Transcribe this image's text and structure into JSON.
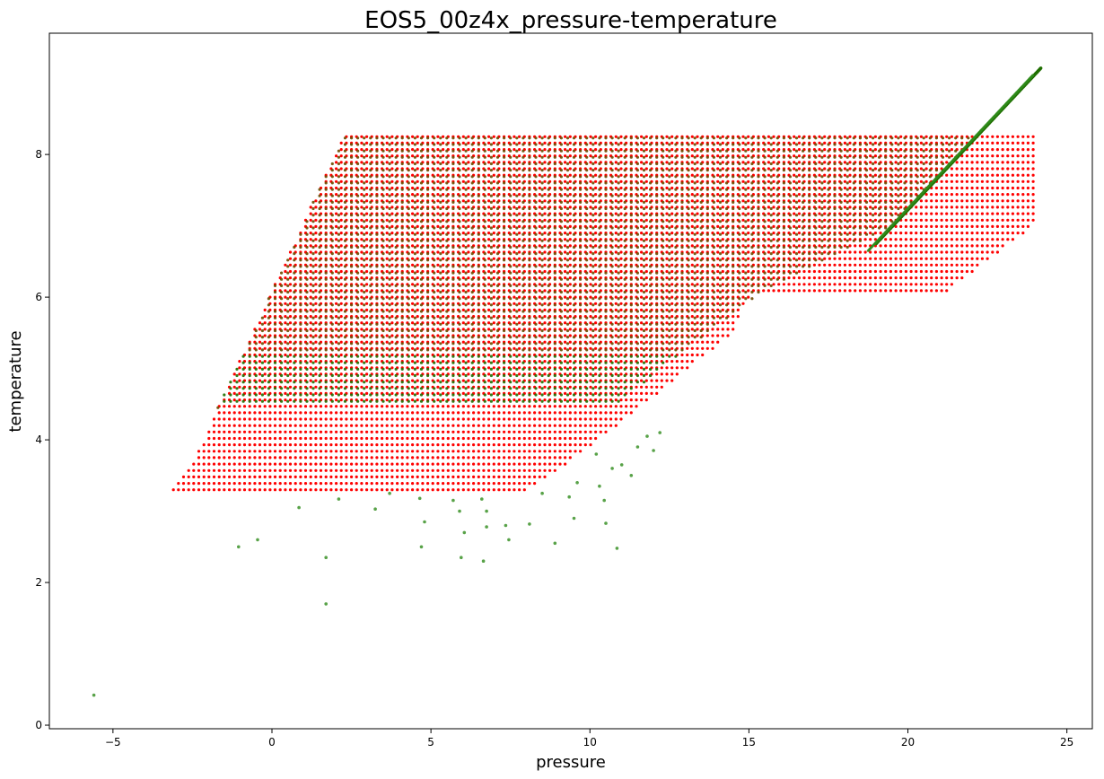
{
  "chart_data": {
    "type": "scatter",
    "title": "EOS5_00z4x_pressure-temperature",
    "xlabel": "pressure",
    "ylabel": "temperature",
    "xlim": [
      -7.0,
      25.8
    ],
    "ylim": [
      -0.05,
      9.7
    ],
    "xticks": [
      -5,
      0,
      5,
      10,
      15,
      20,
      25
    ],
    "yticks": [
      0,
      2,
      4,
      6,
      8
    ],
    "xtick_labels": [
      "−5",
      "0",
      "5",
      "10",
      "15",
      "20",
      "25"
    ],
    "ytick_labels": [
      "0",
      "2",
      "4",
      "6",
      "8"
    ],
    "grid": false,
    "colors": {
      "red_series": "#ff0000",
      "green_series": "#2e8b1a",
      "green_dense": "#1f6e00",
      "overlap": "#6b4a00"
    },
    "red_region": {
      "description_points": [
        [
          -3.1,
          3.3
        ],
        [
          8.1,
          3.3
        ],
        [
          10.0,
          3.9
        ],
        [
          14.5,
          5.5
        ],
        [
          15.0,
          6.0
        ],
        [
          21.0,
          6.0
        ],
        [
          24.1,
          7.05
        ],
        [
          24.1,
          8.3
        ],
        [
          2.3,
          8.3
        ],
        [
          -1.7,
          4.45
        ],
        [
          -2.5,
          3.65
        ]
      ]
    },
    "green_region": {
      "description_points": [
        [
          -1.7,
          4.45
        ],
        [
          10.8,
          4.5
        ],
        [
          14.0,
          5.6
        ],
        [
          15.5,
          6.1
        ],
        [
          19.5,
          7.0
        ],
        [
          24.2,
          9.2
        ],
        [
          22.0,
          8.3
        ],
        [
          2.3,
          8.3
        ]
      ]
    },
    "outlier_points": [
      [
        -5.6,
        0.42
      ],
      [
        1.7,
        1.7
      ],
      [
        -1.05,
        2.5
      ],
      [
        -0.45,
        2.6
      ],
      [
        0.85,
        3.05
      ],
      [
        1.7,
        2.35
      ],
      [
        2.1,
        3.17
      ],
      [
        3.25,
        3.03
      ],
      [
        3.7,
        3.25
      ],
      [
        4.65,
        3.18
      ],
      [
        4.7,
        2.5
      ],
      [
        4.8,
        2.85
      ],
      [
        5.7,
        3.15
      ],
      [
        5.9,
        3.0
      ],
      [
        5.95,
        2.35
      ],
      [
        6.05,
        2.7
      ],
      [
        6.6,
        3.17
      ],
      [
        6.65,
        2.3
      ],
      [
        6.75,
        3.0
      ],
      [
        6.75,
        2.78
      ],
      [
        7.35,
        2.8
      ],
      [
        7.45,
        2.6
      ],
      [
        8.1,
        2.82
      ],
      [
        8.5,
        3.25
      ],
      [
        8.9,
        2.55
      ],
      [
        9.35,
        3.2
      ],
      [
        9.5,
        2.9
      ],
      [
        9.6,
        3.4
      ],
      [
        10.3,
        3.35
      ],
      [
        10.45,
        3.15
      ],
      [
        10.5,
        2.83
      ],
      [
        10.85,
        2.48
      ],
      [
        11.0,
        3.65
      ],
      [
        11.3,
        3.5
      ],
      [
        11.5,
        3.9
      ],
      [
        12.0,
        3.85
      ],
      [
        12.2,
        4.1
      ],
      [
        10.2,
        3.8
      ],
      [
        10.7,
        3.6
      ],
      [
        11.8,
        4.05
      ]
    ]
  }
}
